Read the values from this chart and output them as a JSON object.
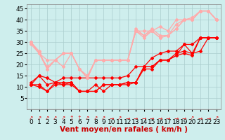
{
  "background_color": "#ceeeed",
  "grid_color": "#aacccc",
  "xlabel": "Vent moyen/en rafales ( km/h )",
  "xlim": [
    -0.5,
    23.5
  ],
  "ylim": [
    0,
    47
  ],
  "yticks": [
    5,
    10,
    15,
    20,
    25,
    30,
    35,
    40,
    45
  ],
  "xticks": [
    0,
    1,
    2,
    3,
    4,
    5,
    6,
    7,
    8,
    9,
    10,
    11,
    12,
    13,
    14,
    15,
    16,
    17,
    18,
    19,
    20,
    21,
    22,
    23
  ],
  "series": [
    {
      "x": [
        0,
        1,
        2,
        3,
        4,
        5,
        6,
        7,
        8,
        9,
        10,
        11,
        12,
        13,
        14,
        15,
        16,
        17,
        18,
        19,
        20,
        21,
        22,
        23
      ],
      "y": [
        12,
        15,
        14,
        12,
        14,
        14,
        14,
        14,
        14,
        14,
        14,
        14,
        15,
        19,
        19,
        23,
        25,
        26,
        26,
        29,
        29,
        32,
        32,
        32
      ],
      "color": "#ff0000",
      "lw": 0.9,
      "marker": "D",
      "ms": 2.0
    },
    {
      "x": [
        0,
        1,
        2,
        3,
        4,
        5,
        6,
        7,
        8,
        9,
        10,
        11,
        12,
        13,
        14,
        15,
        16,
        17,
        18,
        19,
        20,
        21,
        22,
        23
      ],
      "y": [
        11,
        15,
        11,
        12,
        11,
        12,
        8,
        8,
        11,
        8,
        11,
        11,
        12,
        12,
        19,
        19,
        22,
        22,
        25,
        26,
        25,
        32,
        32,
        32
      ],
      "color": "#ff0000",
      "lw": 0.9,
      "marker": "D",
      "ms": 2.0
    },
    {
      "x": [
        0,
        1,
        2,
        3,
        4,
        5,
        6,
        7,
        8,
        9,
        10,
        11,
        12,
        13,
        14,
        15,
        16,
        17,
        18,
        19,
        20,
        21,
        22,
        23
      ],
      "y": [
        11,
        10,
        8,
        11,
        11,
        11,
        8,
        8,
        8,
        11,
        11,
        11,
        11,
        12,
        18,
        18,
        22,
        22,
        24,
        25,
        24,
        32,
        32,
        32
      ],
      "color": "#ff0000",
      "lw": 0.9,
      "marker": "D",
      "ms": 2.0
    },
    {
      "x": [
        0,
        1,
        2,
        3,
        4,
        5,
        6,
        7,
        8,
        9,
        10,
        11,
        12,
        13,
        14,
        15,
        16,
        17,
        18,
        19,
        20,
        21,
        22,
        23
      ],
      "y": [
        11,
        11,
        8,
        12,
        12,
        12,
        8,
        8,
        8,
        11,
        11,
        11,
        12,
        12,
        19,
        19,
        22,
        22,
        24,
        29,
        25,
        26,
        32,
        32
      ],
      "color": "#ff0000",
      "lw": 0.9,
      "marker": "D",
      "ms": 2.0
    },
    {
      "x": [
        0,
        1,
        2,
        3,
        4,
        5,
        6,
        7,
        8,
        9,
        10,
        11,
        12,
        13,
        14,
        15,
        16,
        17,
        18,
        19,
        20,
        21,
        22,
        23
      ],
      "y": [
        30,
        25,
        22,
        22,
        25,
        25,
        18,
        15,
        22,
        22,
        22,
        22,
        22,
        35,
        35,
        35,
        37,
        35,
        40,
        40,
        41,
        44,
        44,
        40
      ],
      "color": "#ffaaaa",
      "lw": 0.9,
      "marker": "D",
      "ms": 2.0
    },
    {
      "x": [
        0,
        1,
        2,
        3,
        4,
        5,
        6,
        7,
        8,
        9,
        10,
        11,
        12,
        13,
        14,
        15,
        16,
        17,
        18,
        19,
        20,
        21,
        22,
        23
      ],
      "y": [
        30,
        25,
        19,
        22,
        25,
        25,
        18,
        14,
        22,
        22,
        22,
        22,
        22,
        36,
        33,
        36,
        33,
        33,
        38,
        40,
        40,
        44,
        44,
        40
      ],
      "color": "#ffaaaa",
      "lw": 0.9,
      "marker": "D",
      "ms": 2.0
    },
    {
      "x": [
        0,
        1,
        2,
        3,
        4,
        5,
        6,
        7,
        8,
        9,
        10,
        11,
        12,
        13,
        14,
        15,
        16,
        17,
        18,
        19,
        20,
        21,
        22,
        23
      ],
      "y": [
        29,
        25,
        18,
        22,
        19,
        25,
        18,
        14,
        22,
        22,
        22,
        22,
        22,
        35,
        33,
        35,
        32,
        33,
        36,
        40,
        40,
        44,
        44,
        40
      ],
      "color": "#ffaaaa",
      "lw": 0.9,
      "marker": "D",
      "ms": 2.0
    },
    {
      "x": [
        0,
        1,
        2,
        3,
        4,
        5,
        6,
        7,
        8,
        9,
        10,
        11,
        12,
        13,
        14,
        15,
        16,
        17,
        18,
        19,
        20,
        21,
        22,
        23
      ],
      "y": [
        30,
        26,
        18,
        22,
        25,
        25,
        18,
        14,
        22,
        22,
        22,
        22,
        22,
        35,
        32,
        35,
        32,
        33,
        36,
        40,
        40,
        44,
        44,
        40
      ],
      "color": "#ffaaaa",
      "lw": 0.9,
      "marker": "D",
      "ms": 2.0
    }
  ],
  "arrows": [
    "↗",
    "↗",
    "↗",
    "↗",
    "↗",
    "↑",
    "↑",
    "↗",
    "↗",
    "↗",
    "→",
    "↗",
    "→",
    "→",
    "→",
    "→",
    "→",
    "→",
    "→",
    "→",
    "↗",
    "→",
    "→",
    "↗"
  ],
  "arrow_color": "#dd2222",
  "xlabel_color": "#cc0000",
  "xlabel_fontsize": 7.5,
  "tick_fontsize": 6.5,
  "arrow_fontsize": 5.5
}
